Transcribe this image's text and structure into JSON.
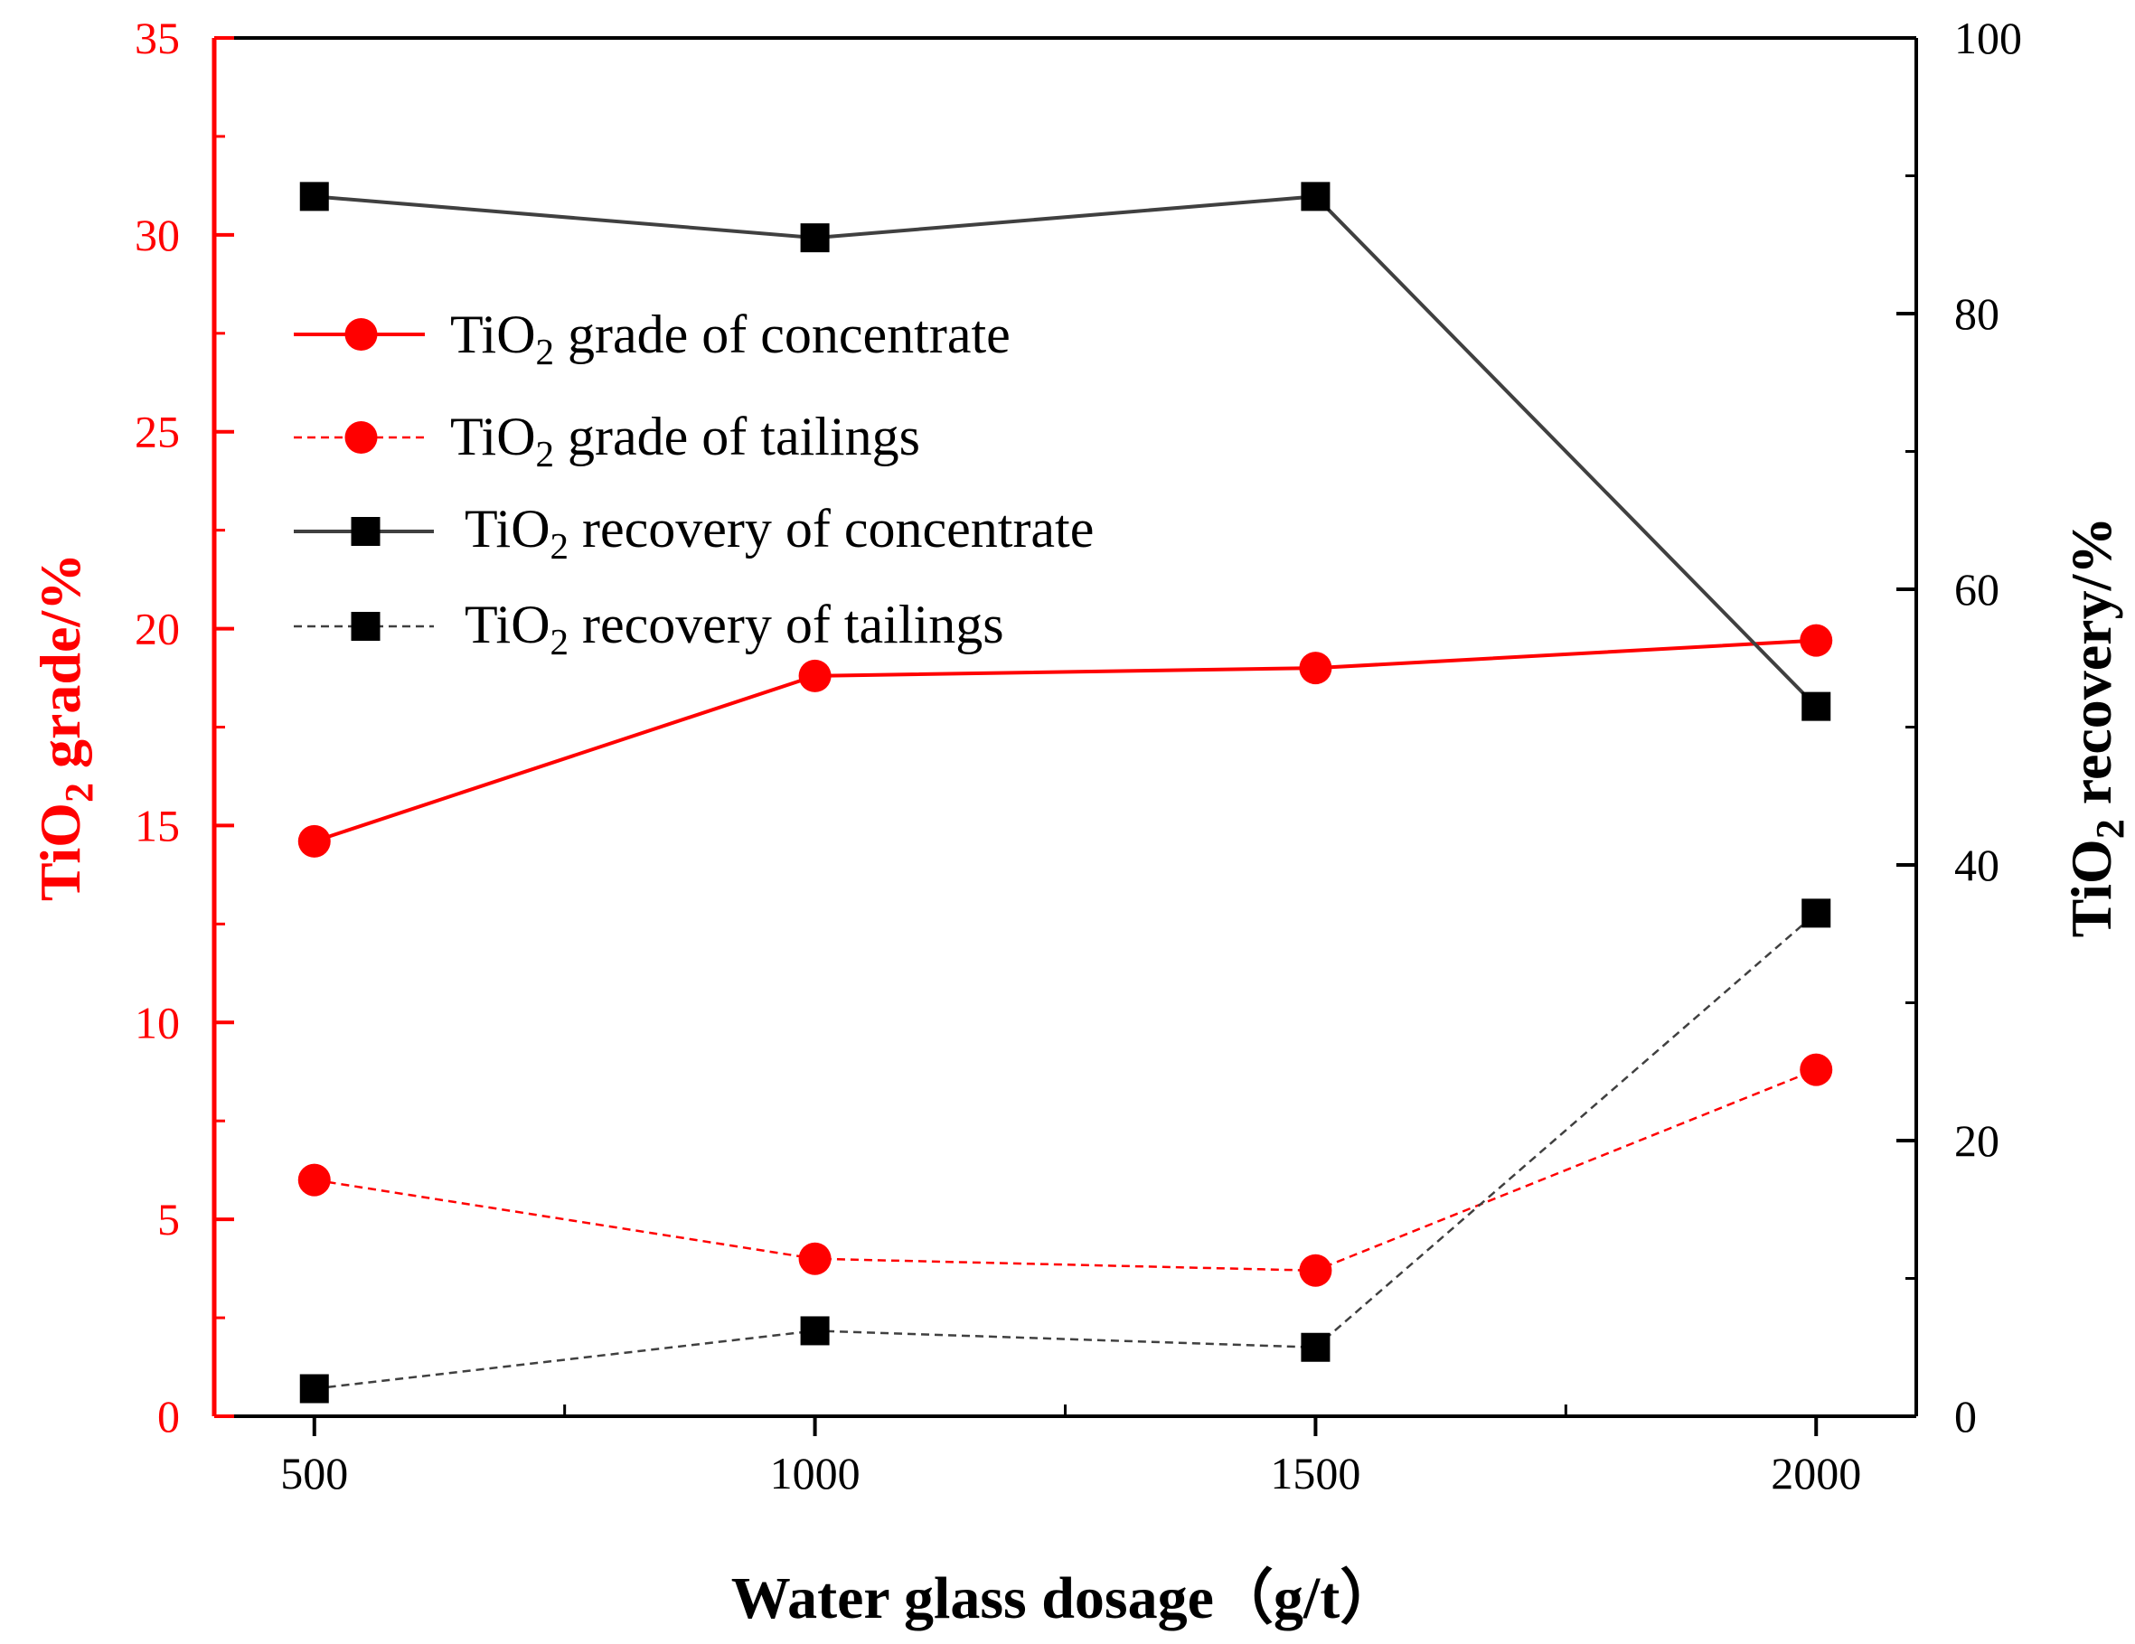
{
  "chart_data": {
    "type": "line",
    "xlabel": "Water glass dosage（g/t）",
    "ylabel_left": {
      "prefix": "TiO",
      "sub": "2",
      "suffix": " grade/%"
    },
    "ylabel_right": {
      "prefix": "TiO",
      "sub": "2",
      "suffix": " recovery/%"
    },
    "x": [
      500,
      1000,
      1500,
      2000
    ],
    "xlim": [
      400,
      2100
    ],
    "xticks": [
      500,
      1000,
      1500,
      2000
    ],
    "xtick_labels": [
      "500",
      "1000",
      "1500",
      "2000"
    ],
    "ylim_left": [
      0,
      35
    ],
    "yticks_left": [
      0,
      5,
      10,
      15,
      20,
      25,
      30,
      35
    ],
    "ytick_labels_left": [
      "0",
      "5",
      "10",
      "15",
      "20",
      "25",
      "30",
      "35"
    ],
    "ylim_right": [
      0,
      100
    ],
    "yticks_right": [
      0,
      20,
      40,
      60,
      80,
      100
    ],
    "ytick_labels_right": [
      "0",
      "20",
      "40",
      "60",
      "80",
      "100"
    ],
    "grid": false,
    "legend_position": "upper-left",
    "series": [
      {
        "name_prefix": "TiO",
        "name_sub": "2",
        "name_suffix": " grade of concentrate",
        "axis": "left",
        "color": "#ff0000",
        "marker": "circle",
        "line": "solid",
        "values": [
          14.6,
          18.8,
          19.0,
          19.7
        ]
      },
      {
        "name_prefix": "TiO",
        "name_sub": "2",
        "name_suffix": " grade of tailings",
        "axis": "left",
        "color": "#ff0000",
        "marker": "circle",
        "line": "dashed",
        "values": [
          6.0,
          4.0,
          3.7,
          8.8
        ]
      },
      {
        "name_prefix": "TiO",
        "name_sub": "2",
        "name_suffix": " recovery of concentrate",
        "axis": "right",
        "color": "#000000",
        "line_color": "#404040",
        "marker": "square",
        "line": "solid",
        "values": [
          88.5,
          85.5,
          88.5,
          51.5
        ]
      },
      {
        "name_prefix": "TiO",
        "name_sub": "2",
        "name_suffix": " recovery of tailings",
        "axis": "right",
        "color": "#000000",
        "line_color": "#404040",
        "marker": "square",
        "line": "dashed",
        "values": [
          2.0,
          6.2,
          5.0,
          36.5
        ]
      }
    ]
  }
}
